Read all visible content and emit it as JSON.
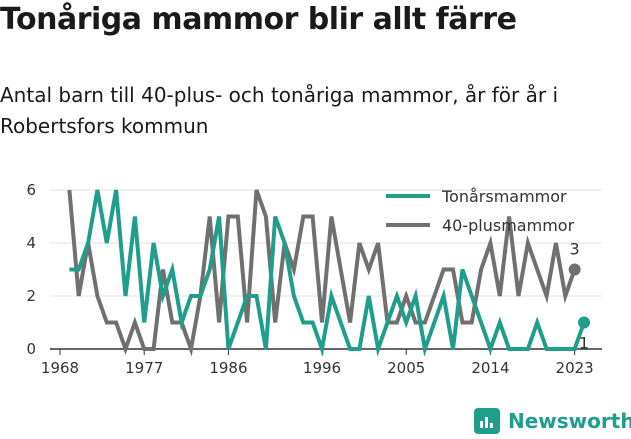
{
  "header": {
    "title": "Tonåriga mammor blir allt färre",
    "subtitle": "Antal barn till 40-plus- och tonåriga mammor, år för år i Robertsfors kommun"
  },
  "brand": {
    "name": "Newsworthy",
    "icon": "bar-chart-icon",
    "color": "#1f9e8c"
  },
  "chart_data": {
    "type": "line",
    "title": "Tonåriga mammor blir allt färre",
    "subtitle": "Antal barn till 40-plus- och tonåriga mammor, år för år i Robertsfors kommun",
    "xlabel": "",
    "ylabel": "",
    "xlim": [
      1968,
      2024
    ],
    "ylim": [
      0,
      6
    ],
    "x_ticks": [
      1968,
      1977,
      1986,
      1996,
      2005,
      2014,
      2023
    ],
    "y_ticks": [
      0,
      2,
      4,
      6
    ],
    "grid": true,
    "legend_position": "top-right",
    "x": [
      1968,
      1969,
      1970,
      1971,
      1972,
      1973,
      1974,
      1975,
      1976,
      1977,
      1978,
      1979,
      1980,
      1981,
      1982,
      1983,
      1984,
      1985,
      1986,
      1987,
      1988,
      1989,
      1990,
      1991,
      1992,
      1993,
      1994,
      1995,
      1996,
      1997,
      1998,
      1999,
      2000,
      2001,
      2002,
      2003,
      2004,
      2005,
      2006,
      2007,
      2008,
      2009,
      2010,
      2011,
      2012,
      2013,
      2014,
      2015,
      2016,
      2017,
      2018,
      2019,
      2020,
      2021,
      2022,
      2023,
      2024
    ],
    "series": [
      {
        "name": "Tonårsmammor",
        "color": "#1f9e8c",
        "values": [
          null,
          3,
          3,
          4,
          6,
          4,
          6,
          2,
          5,
          1,
          4,
          2,
          3,
          1,
          2,
          2,
          3,
          5,
          0,
          1,
          2,
          2,
          0,
          5,
          4,
          2,
          1,
          1,
          0,
          2,
          1,
          0,
          0,
          2,
          0,
          1,
          2,
          1,
          2,
          0,
          1,
          2,
          0,
          3,
          2,
          1,
          0,
          1,
          0,
          0,
          0,
          1,
          0,
          0,
          0,
          0,
          1
        ],
        "end_label": "1"
      },
      {
        "name": "40-plusmammor",
        "color": "#707070",
        "values": [
          null,
          6,
          2,
          4,
          2,
          1,
          1,
          0,
          1,
          0,
          0,
          3,
          1,
          1,
          0,
          2,
          5,
          1,
          5,
          5,
          1,
          6,
          5,
          1,
          4,
          3,
          5,
          5,
          1,
          5,
          3,
          1,
          4,
          3,
          4,
          1,
          1,
          2,
          1,
          1,
          2,
          3,
          3,
          1,
          1,
          3,
          4,
          2,
          5,
          2,
          4,
          3,
          2,
          4,
          2,
          3,
          null
        ],
        "end_label": "3"
      }
    ],
    "end_values": {
      "Tonårsmammor": 1,
      "40-plusmammor": 3
    }
  }
}
